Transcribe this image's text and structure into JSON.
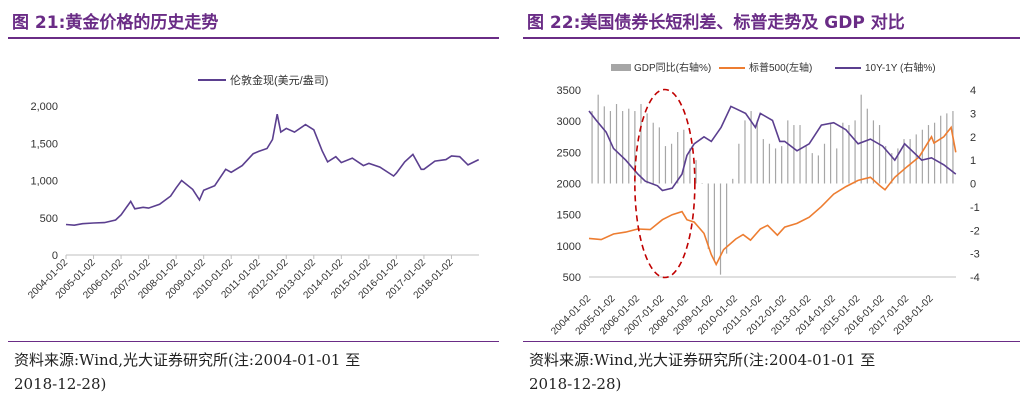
{
  "left": {
    "fig_label": "图 21:黄金价格的历史走势",
    "source_line1": "资料来源:Wind,光大证券研究所(注:2004-01-01 至",
    "source_line2": "2018-12-28)"
  },
  "right": {
    "fig_label": "图 22:美国债券长短利差、标普走势及 GDP 对比",
    "source_line1": "资料来源:Wind,光大证券研究所(注:2004-01-01 至",
    "source_line2": "2018-12-28)"
  },
  "chart_data": [
    {
      "type": "line",
      "legend": [
        "伦敦金现(美元/盎司)"
      ],
      "legend_position": "top",
      "ylim": [
        0,
        2000
      ],
      "yticks": [
        "0",
        "500",
        "1,000",
        "1,500",
        "2,000"
      ],
      "xticks": [
        "2004-01-02",
        "2005-01-02",
        "2006-01-02",
        "2007-01-02",
        "2008-01-02",
        "2009-01-02",
        "2010-01-02",
        "2011-01-02",
        "2012-01-02",
        "2013-01-02",
        "2014-01-02",
        "2015-01-02",
        "2016-01-02",
        "2017-01-02",
        "2018-01-02"
      ],
      "grid": false,
      "colors": {
        "gold": "#5b3f8f"
      },
      "series": [
        {
          "name": "伦敦金现(美元/盎司)",
          "x": [
            2004.0,
            2004.3,
            2004.6,
            2005.0,
            2005.4,
            2005.8,
            2006.0,
            2006.35,
            2006.5,
            2006.8,
            2007.0,
            2007.4,
            2007.8,
            2008.0,
            2008.2,
            2008.6,
            2008.85,
            2009.0,
            2009.4,
            2009.8,
            2010.0,
            2010.4,
            2010.8,
            2011.0,
            2011.3,
            2011.5,
            2011.67,
            2011.8,
            2012.0,
            2012.3,
            2012.7,
            2013.0,
            2013.3,
            2013.5,
            2013.8,
            2014.0,
            2014.4,
            2014.8,
            2015.0,
            2015.4,
            2015.9,
            2016.0,
            2016.3,
            2016.6,
            2016.9,
            2017.0,
            2017.4,
            2017.8,
            2018.0,
            2018.3,
            2018.6,
            2018.99
          ],
          "y": [
            410,
            400,
            420,
            430,
            435,
            470,
            540,
            720,
            620,
            640,
            630,
            680,
            790,
            900,
            1000,
            880,
            740,
            870,
            930,
            1150,
            1110,
            1200,
            1360,
            1390,
            1430,
            1550,
            1890,
            1650,
            1700,
            1650,
            1750,
            1680,
            1400,
            1250,
            1320,
            1240,
            1300,
            1200,
            1230,
            1180,
            1060,
            1100,
            1250,
            1350,
            1150,
            1150,
            1260,
            1280,
            1330,
            1320,
            1210,
            1280
          ]
        }
      ]
    },
    {
      "type": "line",
      "legend": [
        "GDP同比(右轴%)",
        "标普500(左轴)",
        "10Y-1Y (右轴%)"
      ],
      "legend_position": "top",
      "ylim": [
        500,
        3500
      ],
      "y2lim": [
        -4,
        4
      ],
      "yticks": [
        "500",
        "1000",
        "1500",
        "2000",
        "2500",
        "3000",
        "3500"
      ],
      "y2ticks": [
        "-4",
        "-3",
        "-2",
        "-1",
        "0",
        "1",
        "2",
        "3",
        "4"
      ],
      "xticks": [
        "2004-01-02",
        "2005-01-02",
        "2006-01-02",
        "2007-01-02",
        "2008-01-02",
        "2009-01-02",
        "2010-01-02",
        "2011-01-02",
        "2012-01-02",
        "2013-01-02",
        "2014-01-02",
        "2015-01-02",
        "2016-01-02",
        "2017-01-02",
        "2018-01-02"
      ],
      "grid": false,
      "colors": {
        "gdp": "#a6a6a6",
        "sp500": "#ed7d31",
        "spread": "#5b3f8f",
        "annotation": "#c00000"
      },
      "gdp_quarterly": [
        3.1,
        3.8,
        3.3,
        3.1,
        3.4,
        3.1,
        3.2,
        3.1,
        3.4,
        3.0,
        2.6,
        2.4,
        1.6,
        1.7,
        2.2,
        2.3,
        1.5,
        1.0,
        0.0,
        -2.8,
        -3.3,
        -3.9,
        -3.0,
        0.2,
        1.7,
        2.7,
        3.1,
        2.7,
        1.9,
        1.7,
        1.5,
        1.6,
        2.7,
        2.5,
        2.5,
        1.6,
        1.3,
        1.2,
        1.7,
        2.6,
        1.5,
        2.6,
        2.5,
        2.7,
        3.8,
        3.2,
        2.7,
        2.5,
        1.6,
        1.3,
        1.5,
        1.9,
        1.9,
        2.1,
        2.3,
        2.5,
        2.6,
        2.9,
        3.0,
        3.1
      ],
      "series": [
        {
          "name": "标普500(左轴)",
          "x": [
            2004.0,
            2004.5,
            2005.0,
            2005.5,
            2006.0,
            2006.5,
            2007.0,
            2007.4,
            2007.8,
            2008.0,
            2008.3,
            2008.7,
            2009.0,
            2009.2,
            2009.5,
            2010.0,
            2010.3,
            2010.6,
            2011.0,
            2011.3,
            2011.7,
            2012.0,
            2012.5,
            2013.0,
            2013.5,
            2014.0,
            2014.5,
            2015.0,
            2015.5,
            2015.9,
            2016.1,
            2016.5,
            2017.0,
            2017.5,
            2018.0,
            2018.1,
            2018.5,
            2018.8,
            2018.99
          ],
          "y": [
            1120,
            1100,
            1190,
            1220,
            1270,
            1260,
            1420,
            1500,
            1550,
            1420,
            1380,
            1200,
            860,
            700,
            940,
            1110,
            1180,
            1090,
            1270,
            1330,
            1170,
            1300,
            1360,
            1460,
            1630,
            1830,
            1950,
            2050,
            2100,
            1960,
            1900,
            2100,
            2270,
            2430,
            2750,
            2650,
            2750,
            2900,
            2500
          ]
        },
        {
          "name": "10Y-1Y (右轴%)",
          "x": [
            2004.0,
            2004.3,
            2004.7,
            2005.0,
            2005.5,
            2006.0,
            2006.3,
            2006.8,
            2007.0,
            2007.4,
            2007.8,
            2008.0,
            2008.3,
            2008.7,
            2009.0,
            2009.4,
            2009.8,
            2010.0,
            2010.4,
            2010.8,
            2011.0,
            2011.5,
            2011.8,
            2012.0,
            2012.5,
            2013.0,
            2013.5,
            2014.0,
            2014.5,
            2015.0,
            2015.5,
            2016.0,
            2016.5,
            2016.9,
            2017.2,
            2017.6,
            2018.0,
            2018.5,
            2018.99
          ],
          "y": [
            3.1,
            2.7,
            2.2,
            1.5,
            1.0,
            0.4,
            0.1,
            -0.1,
            -0.3,
            -0.2,
            0.4,
            1.2,
            1.7,
            2.0,
            1.8,
            2.4,
            3.3,
            3.2,
            3.0,
            2.4,
            3.0,
            2.7,
            1.8,
            1.8,
            1.4,
            1.7,
            2.5,
            2.6,
            2.3,
            1.7,
            1.9,
            1.6,
            1.0,
            1.7,
            1.4,
            1.0,
            1.1,
            0.8,
            0.4
          ]
        }
      ]
    }
  ]
}
